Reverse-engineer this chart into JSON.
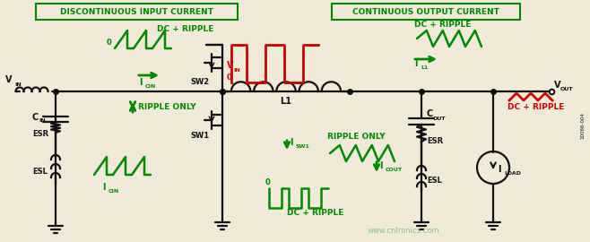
{
  "bg_color": "#f0ead8",
  "black": "#111111",
  "green": "#008800",
  "red": "#cc0000",
  "title1": "DISCONTINUOUS INPUT CURRENT",
  "title2": "CONTINUOUS OUTPUT CURRENT",
  "watermark": "www.cnlronics.com",
  "side_label": "10086-004"
}
